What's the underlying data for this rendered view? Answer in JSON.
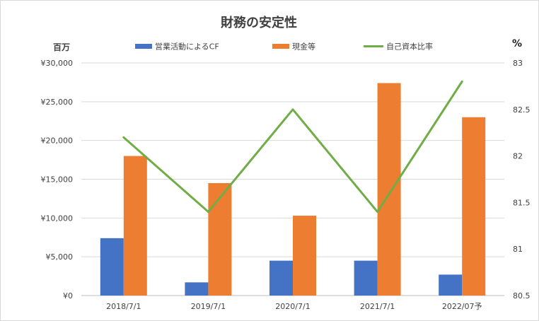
{
  "chart_data": {
    "type": "bar+line",
    "title": "財務の安定性",
    "categories": [
      "2018/7/1",
      "2019/7/1",
      "2020/7/1",
      "2021/7/1",
      "2022/07予"
    ],
    "series": [
      {
        "name": "営業活動によるCF",
        "type": "bar",
        "axis": "left",
        "color": "#4472C4",
        "values": [
          7400,
          1700,
          4500,
          4500,
          2700
        ]
      },
      {
        "name": "現金等",
        "type": "bar",
        "axis": "left",
        "color": "#ED7D31",
        "values": [
          18000,
          14500,
          10300,
          27400,
          23000
        ]
      },
      {
        "name": "自己資本比率",
        "type": "line",
        "axis": "right",
        "color": "#70AD47",
        "values": [
          82.2,
          81.4,
          82.5,
          81.4,
          82.8
        ]
      }
    ],
    "left_axis": {
      "unit": "百万",
      "ylim": [
        0,
        30000
      ],
      "ticks": [
        0,
        5000,
        10000,
        15000,
        20000,
        25000,
        30000
      ],
      "tick_labels": [
        "¥0",
        "¥5,000",
        "¥10,000",
        "¥15,000",
        "¥20,000",
        "¥25,000",
        "¥30,000"
      ]
    },
    "right_axis": {
      "unit": "%",
      "ylim": [
        80.5,
        83
      ],
      "ticks": [
        80.5,
        81,
        81.5,
        82,
        82.5,
        83
      ],
      "tick_labels": [
        "80.5",
        "81",
        "81.5",
        "82",
        "82.5",
        "83"
      ]
    },
    "grid": true,
    "legend_position": "top"
  }
}
